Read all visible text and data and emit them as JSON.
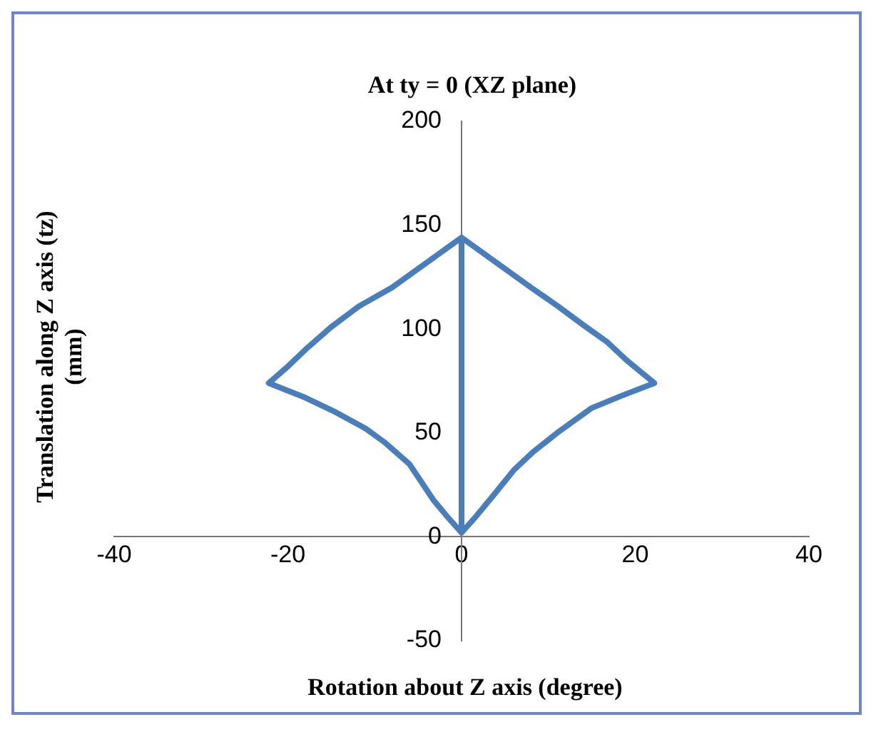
{
  "chart_data": {
    "type": "line",
    "title": "At ty = 0 (XZ plane)",
    "xlabel": "Rotation about Z axis (degree)",
    "ylabel": "Translation along Z axis (tz) (mm)",
    "xlim": [
      -40,
      40
    ],
    "xticks": [
      -40,
      -20,
      0,
      20,
      40
    ],
    "ylim": [
      -50,
      200
    ],
    "yticks": [
      -50,
      0,
      50,
      100,
      150,
      200
    ],
    "grid": false,
    "legend": false,
    "marker": "none",
    "line_style": "solid",
    "series": [
      {
        "color": "#4a7ebb",
        "x": [
          0,
          0,
          -4,
          -8,
          -11.8,
          -15,
          -18,
          -20,
          -22.2,
          -18,
          -14.5,
          -11,
          -8.9,
          -6,
          -3.2,
          -1.5,
          0,
          1.5,
          3.6,
          6,
          8.2,
          11,
          15,
          18.5,
          22.2,
          19,
          16.7,
          14,
          11.1,
          8,
          4,
          0
        ],
        "values": [
          2,
          144,
          132,
          120,
          111,
          101,
          90,
          82,
          74,
          67,
          60,
          52,
          45.6,
          35,
          17.5,
          9,
          2,
          9,
          19.6,
          32,
          40.7,
          50,
          62,
          68,
          74,
          85,
          94,
          102,
          111,
          120,
          132,
          144
        ]
      }
    ]
  }
}
